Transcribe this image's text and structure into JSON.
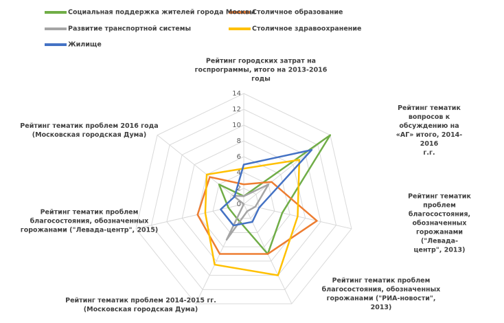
{
  "chart_data": {
    "type": "radar",
    "categories": [
      "Рейтинг городских затрат на\nгоспрограммы, итого на 2013-2016\nгоды",
      "Рейтинг тематик вопросов к\nобсуждению на «АГ» итого, 2014-2016\nг.г.",
      "Рейтинг тематик проблем\nблагосостояния, обозначенных\nгорожанами (\"Левада-центр\", 2013)",
      "Рейтинг тематик проблем\nблагосостояния, обозначенных\nгорожанами (\"РИА-новости\", 2013)",
      "Рейтинг тематик проблем 2014-2015 гг.\n(Московская городская Дума)",
      "Рейтинг тематик проблем\nблагосостояния, обозначенных\nгорожанами (\"Левада-центр\", 2015)",
      "Рейтинг тематик проблем 2016 года\n(Московская городская Дума)"
    ],
    "series": [
      {
        "name": "Социальная поддержка жителей города Москвы",
        "color": "#70ad47",
        "values": [
          1,
          14,
          5,
          7,
          2,
          2,
          4
        ]
      },
      {
        "name": "Столичное образование",
        "color": "#ed7d31",
        "values": [
          2.5,
          4.5,
          9.5,
          7,
          7,
          6,
          5.5
        ]
      },
      {
        "name": "Развитие транспортной системы",
        "color": "#a5a5a5",
        "values": [
          1,
          4,
          1.5,
          1,
          5,
          0,
          1.7
        ]
      },
      {
        "name": "Столичное здравоохранение",
        "color": "#ffc000",
        "values": [
          4.5,
          9,
          7,
          10,
          8.5,
          5,
          6
        ]
      },
      {
        "name": "Жилище",
        "color": "#4472c4",
        "values": [
          5,
          11,
          2,
          2.5,
          3,
          3,
          1.5
        ]
      }
    ],
    "ylim": [
      0,
      14
    ],
    "yticks": [
      0,
      2,
      4,
      6,
      8,
      10,
      12,
      14
    ],
    "grid": true
  }
}
